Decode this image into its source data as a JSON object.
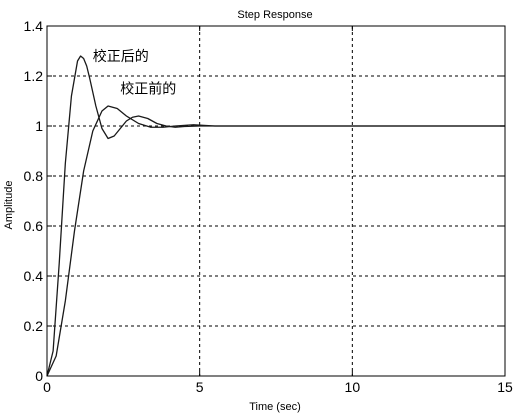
{
  "chart_data": {
    "type": "line",
    "title": "Step Response",
    "xlabel": "Time (sec)",
    "ylabel": "Amplitude",
    "xlim": [
      0,
      15
    ],
    "ylim": [
      0,
      1.4
    ],
    "x_ticks": [
      "0",
      "5",
      "10",
      "15"
    ],
    "y_ticks": [
      "0",
      "0.2",
      "0.4",
      "0.6",
      "0.8",
      "1",
      "1.2",
      "1.4"
    ],
    "grid": true,
    "annotations": [
      {
        "text": "校正后的",
        "x": 1.5,
        "y": 1.28
      },
      {
        "text": "校正前的",
        "x": 2.4,
        "y": 1.15
      }
    ],
    "series": [
      {
        "name": "校正后的",
        "x": [
          0,
          0.2,
          0.4,
          0.6,
          0.8,
          1.0,
          1.1,
          1.2,
          1.3,
          1.4,
          1.6,
          1.8,
          2.0,
          2.2,
          2.4,
          2.6,
          2.8,
          3.0,
          3.3,
          3.6,
          3.9,
          4.2,
          4.5,
          5.0,
          6.0,
          8.0,
          10.0,
          12.0,
          15.0
        ],
        "y": [
          0,
          0.1,
          0.45,
          0.85,
          1.12,
          1.26,
          1.28,
          1.27,
          1.24,
          1.19,
          1.08,
          0.99,
          0.95,
          0.96,
          0.99,
          1.02,
          1.035,
          1.04,
          1.03,
          1.01,
          1.0,
          0.995,
          0.998,
          1.0,
          1.0,
          1.0,
          1.0,
          1.0,
          1.0
        ]
      },
      {
        "name": "校正前的",
        "x": [
          0,
          0.3,
          0.6,
          0.9,
          1.2,
          1.5,
          1.8,
          2.0,
          2.3,
          2.6,
          3.0,
          3.4,
          3.8,
          4.2,
          4.8,
          5.5,
          6.5,
          8.0,
          10.0,
          12.0,
          15.0
        ],
        "y": [
          0,
          0.08,
          0.3,
          0.58,
          0.82,
          0.98,
          1.06,
          1.08,
          1.07,
          1.04,
          1.01,
          0.995,
          0.995,
          1.0,
          1.005,
          1.0,
          1.0,
          1.0,
          1.0,
          1.0,
          1.0
        ]
      }
    ]
  }
}
